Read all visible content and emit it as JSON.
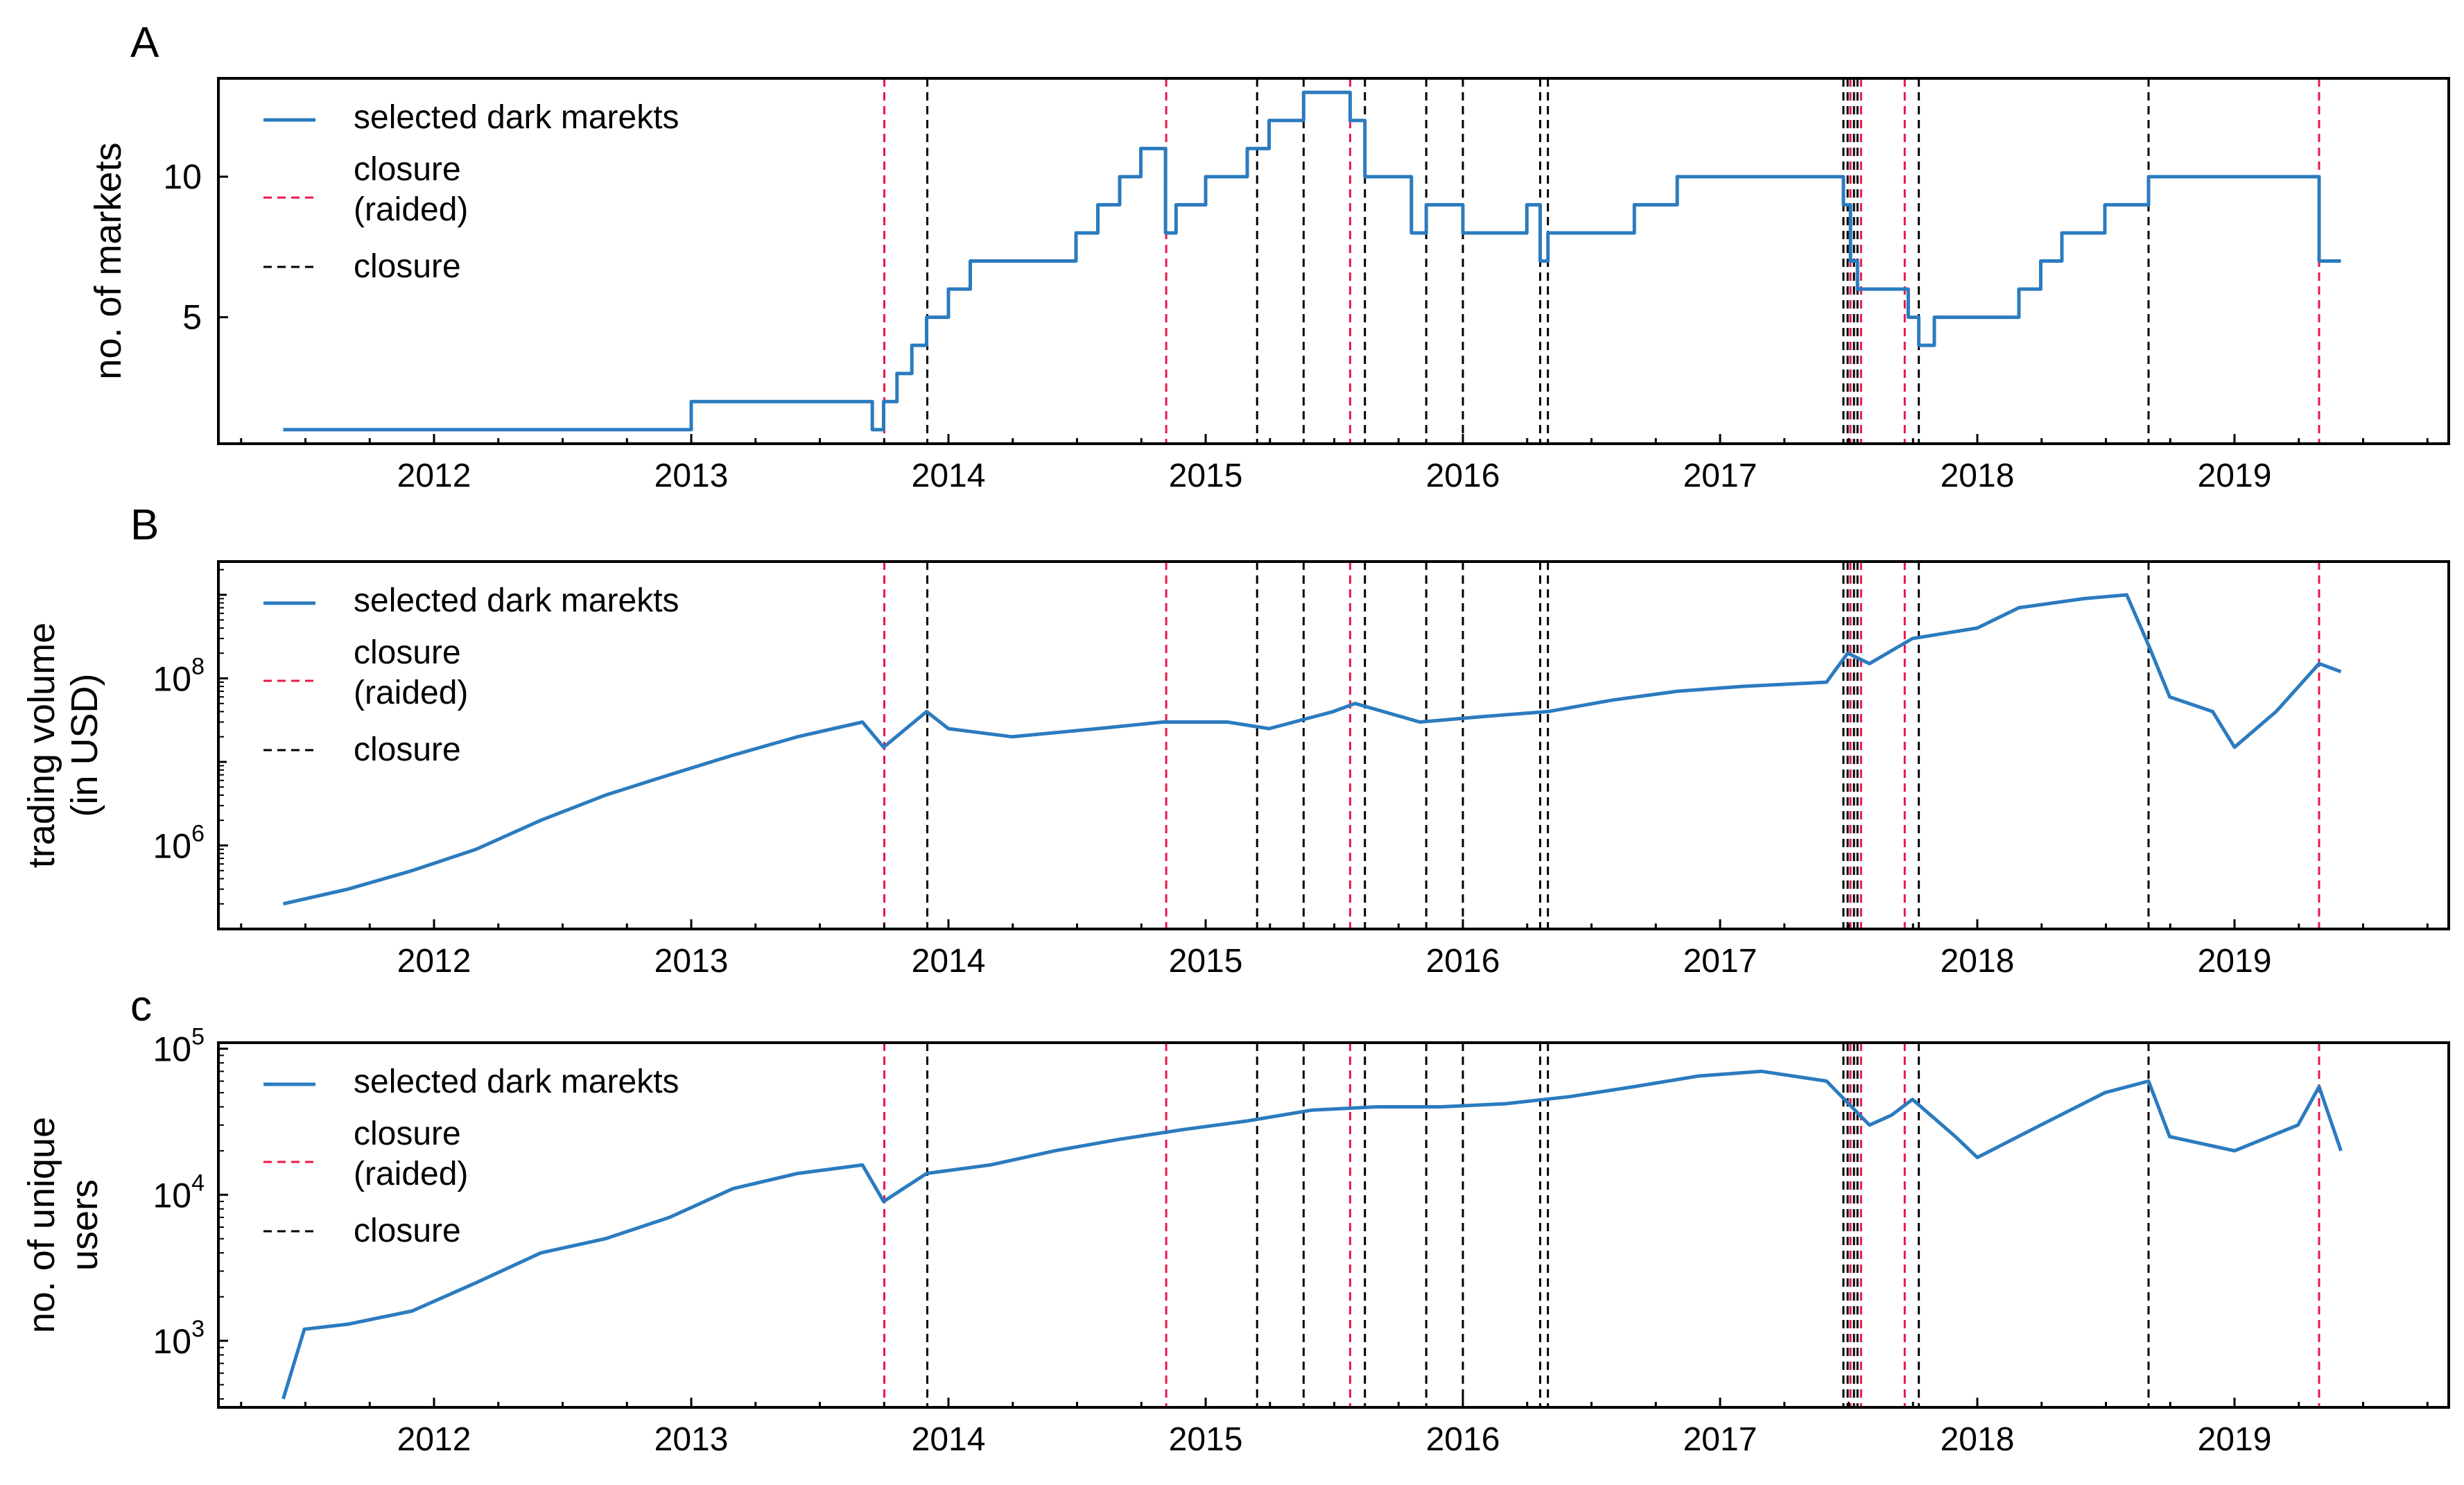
{
  "colors": {
    "series": "#2b7bbf",
    "raided": "#e8174a",
    "closure": "#000000",
    "axis": "#000000"
  },
  "panels": [
    {
      "letter": "A",
      "ylabel": [
        "no. of markets"
      ]
    },
    {
      "letter": "B",
      "ylabel": [
        "trading volume",
        "(in USD)"
      ]
    },
    {
      "letter": "c",
      "ylabel": [
        "no. of unique",
        "users"
      ]
    }
  ],
  "legend": {
    "series_label": "selected dark marekts",
    "raided_label": [
      "closure",
      "(raided)"
    ],
    "closure_label": "closure"
  },
  "chart_data": [
    {
      "type": "line",
      "panel": "A",
      "title": "",
      "xlabel": "",
      "ylabel": "no. of markets",
      "x_ticks": [
        "2012",
        "2013",
        "2014",
        "2015",
        "2016",
        "2017",
        "2018",
        "2019"
      ],
      "xlim": [
        "2011-03",
        "2019-11"
      ],
      "ylim": [
        0.5,
        13.5
      ],
      "y_ticks": [
        5,
        10
      ],
      "yscale": "linear",
      "series": [
        {
          "name": "selected dark marekts",
          "step": true,
          "x": [
            "2011-06",
            "2013-01",
            "2013-09-15",
            "2013-10-01",
            "2013-10-20",
            "2013-11-10",
            "2013-12-01",
            "2014-01",
            "2014-02",
            "2014-07",
            "2014-08",
            "2014-09",
            "2014-10",
            "2014-11-05",
            "2014-11-20",
            "2015-01",
            "2015-03",
            "2015-04",
            "2015-05-20",
            "2015-07-25",
            "2015-08-15",
            "2015-10-20",
            "2015-11-10",
            "2016-01",
            "2016-04-01",
            "2016-04-20",
            "2016-05",
            "2016-09",
            "2016-11",
            "2017-06-25",
            "2017-07-05",
            "2017-07-15",
            "2017-08",
            "2017-09-25",
            "2017-10-10",
            "2017-11",
            "2018-01",
            "2018-03",
            "2018-04",
            "2018-05",
            "2018-07",
            "2018-08",
            "2018-09-01",
            "2019-05-01",
            "2019-06"
          ],
          "y": [
            1,
            2,
            1,
            2,
            3,
            4,
            5,
            6,
            7,
            8,
            9,
            10,
            11,
            8,
            9,
            10,
            11,
            12,
            13,
            12,
            10,
            8,
            9,
            8,
            9,
            7,
            8,
            9,
            10,
            9,
            7,
            6,
            6,
            5,
            4,
            5,
            5,
            6,
            7,
            8,
            9,
            9,
            10,
            7,
            7
          ]
        }
      ],
      "closures_raided": [
        "2013-10-02",
        "2014-11-06",
        "2015-07-25",
        "2017-07-05",
        "2017-07-20",
        "2017-09-20",
        "2019-05-01"
      ],
      "closures": [
        "2013-12-02",
        "2015-03-15",
        "2015-05-20",
        "2015-08-15",
        "2015-11-10",
        "2016-01-01",
        "2016-04-20",
        "2016-05-01",
        "2017-06-25",
        "2017-07-01",
        "2017-07-10",
        "2017-07-15",
        "2017-10-10",
        "2018-09-01"
      ]
    },
    {
      "type": "line",
      "panel": "B",
      "title": "",
      "xlabel": "",
      "ylabel": "trading volume (in USD)",
      "x_ticks": [
        "2012",
        "2013",
        "2014",
        "2015",
        "2016",
        "2017",
        "2018",
        "2019"
      ],
      "xlim": [
        "2011-03",
        "2019-11"
      ],
      "ylim": [
        100000,
        2500000000
      ],
      "y_ticks": [
        1000000,
        100000000
      ],
      "y_tick_labels": [
        "10^6",
        "10^8"
      ],
      "yscale": "log",
      "series": [
        {
          "name": "selected dark marekts",
          "x": [
            "2011-06",
            "2011-09",
            "2011-12",
            "2012-03",
            "2012-06",
            "2012-09",
            "2012-12",
            "2013-03",
            "2013-06",
            "2013-09",
            "2013-10",
            "2013-12",
            "2014-01",
            "2014-04",
            "2014-08",
            "2014-11",
            "2015-02",
            "2015-04",
            "2015-07",
            "2015-08",
            "2015-11",
            "2016-02",
            "2016-05",
            "2016-08",
            "2016-11",
            "2017-02",
            "2017-06",
            "2017-07",
            "2017-08",
            "2017-10",
            "2018-01",
            "2018-03",
            "2018-06",
            "2018-08",
            "2018-09",
            "2018-10",
            "2018-12",
            "2019-01",
            "2019-03",
            "2019-05",
            "2019-06"
          ],
          "y": [
            200000,
            300000,
            500000,
            900000,
            2000000,
            4000000,
            7000000,
            12000000,
            20000000,
            30000000,
            15000000,
            40000000,
            25000000,
            20000000,
            25000000,
            30000000,
            30000000,
            25000000,
            40000000,
            50000000,
            30000000,
            35000000,
            40000000,
            55000000,
            70000000,
            80000000,
            90000000,
            200000000,
            150000000,
            300000000,
            400000000,
            700000000,
            900000000,
            1000000000,
            250000000,
            60000000,
            40000000,
            15000000,
            40000000,
            150000000,
            120000000
          ]
        }
      ],
      "closures_raided": [
        "2013-10-02",
        "2014-11-06",
        "2015-07-25",
        "2017-07-05",
        "2017-07-20",
        "2017-09-20",
        "2019-05-01"
      ],
      "closures": [
        "2013-12-02",
        "2015-03-15",
        "2015-05-20",
        "2015-08-15",
        "2015-11-10",
        "2016-01-01",
        "2016-04-20",
        "2016-05-01",
        "2017-06-25",
        "2017-07-01",
        "2017-07-10",
        "2017-07-15",
        "2017-10-10",
        "2018-09-01"
      ]
    },
    {
      "type": "line",
      "panel": "c",
      "title": "",
      "xlabel": "",
      "ylabel": "no. of unique users",
      "x_ticks": [
        "2012",
        "2013",
        "2014",
        "2015",
        "2016",
        "2017",
        "2018",
        "2019"
      ],
      "xlim": [
        "2011-03",
        "2019-11"
      ],
      "ylim": [
        350,
        110000
      ],
      "y_ticks": [
        1000,
        10000,
        100000
      ],
      "y_tick_labels": [
        "10^3",
        "10^4",
        "10^5"
      ],
      "yscale": "log",
      "series": [
        {
          "name": "selected dark marekts",
          "x": [
            "2011-06",
            "2011-07",
            "2011-09",
            "2011-12",
            "2012-03",
            "2012-06",
            "2012-09",
            "2012-12",
            "2013-03",
            "2013-06",
            "2013-09",
            "2013-10",
            "2013-12",
            "2014-03",
            "2014-06",
            "2014-09",
            "2014-12",
            "2015-03",
            "2015-06",
            "2015-09",
            "2015-12",
            "2016-03",
            "2016-06",
            "2016-09",
            "2016-12",
            "2017-03",
            "2017-06",
            "2017-08",
            "2017-09",
            "2017-10",
            "2017-12",
            "2018-01",
            "2018-04",
            "2018-07",
            "2018-09",
            "2018-10",
            "2019-01",
            "2019-04",
            "2019-05",
            "2019-06"
          ],
          "y": [
            400,
            1200,
            1300,
            1600,
            2500,
            4000,
            5000,
            7000,
            11000,
            14000,
            16000,
            9000,
            14000,
            16000,
            20000,
            24000,
            28000,
            32000,
            38000,
            40000,
            40000,
            42000,
            47000,
            55000,
            65000,
            70000,
            60000,
            30000,
            35000,
            45000,
            25000,
            18000,
            30000,
            50000,
            60000,
            25000,
            20000,
            30000,
            55000,
            20000
          ]
        }
      ],
      "closures_raided": [
        "2013-10-02",
        "2014-11-06",
        "2015-07-25",
        "2017-07-05",
        "2017-07-20",
        "2017-09-20",
        "2019-05-01"
      ],
      "closures": [
        "2013-12-02",
        "2015-03-15",
        "2015-05-20",
        "2015-08-15",
        "2015-11-10",
        "2016-01-01",
        "2016-04-20",
        "2016-05-01",
        "2017-06-25",
        "2017-07-01",
        "2017-07-10",
        "2017-07-15",
        "2017-10-10",
        "2018-09-01"
      ]
    }
  ]
}
